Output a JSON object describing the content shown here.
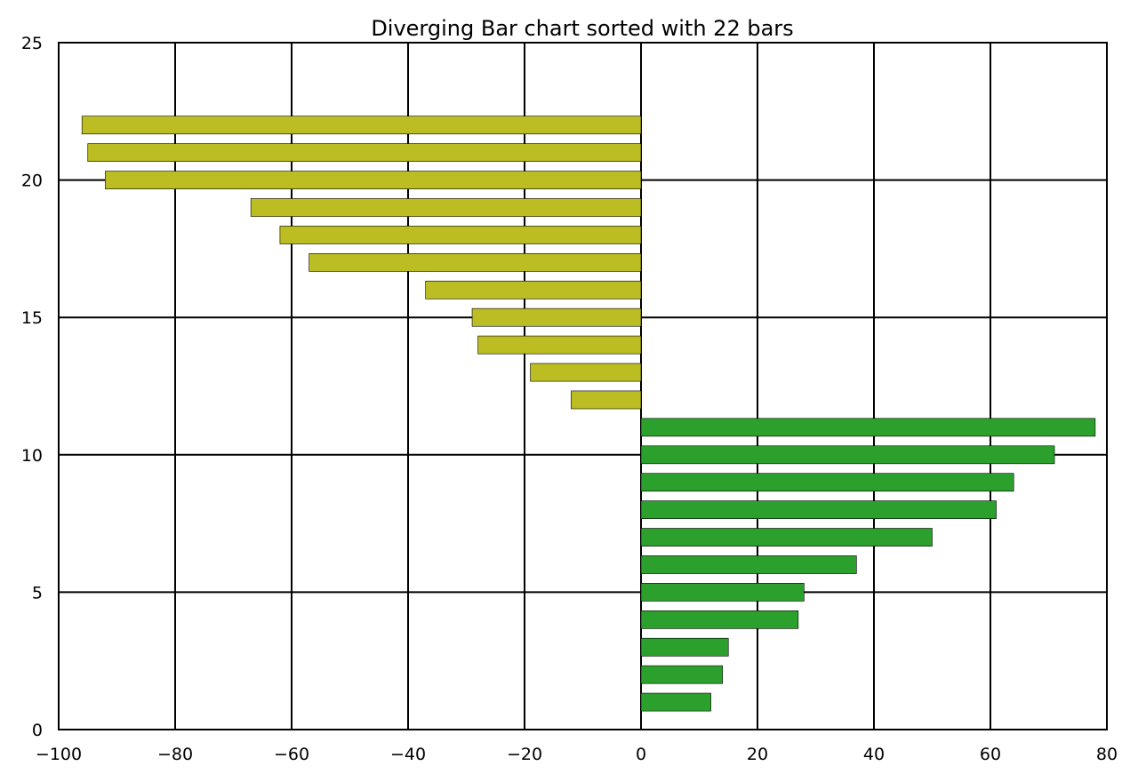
{
  "chart_data": {
    "type": "bar",
    "orientation": "horizontal",
    "title": "Diverging Bar chart sorted with 22 bars",
    "xlabel": "",
    "ylabel": "",
    "xlim": [
      -100,
      80
    ],
    "ylim": [
      0,
      25
    ],
    "xticks": [
      -100,
      -80,
      -60,
      -40,
      -20,
      0,
      20,
      40,
      60,
      80
    ],
    "yticks": [
      0,
      5,
      10,
      15,
      20,
      25
    ],
    "x_tick_labels": [
      "−100",
      "−80",
      "−60",
      "−40",
      "−20",
      "0",
      "20",
      "40",
      "60",
      "80"
    ],
    "y_tick_labels": [
      "0",
      "5",
      "10",
      "15",
      "20",
      "25"
    ],
    "grid": true,
    "bar_height": 0.65,
    "colors": {
      "positive": "#2ca02c",
      "negative": "#bcbd22",
      "edge": "#000000",
      "grid": "#000000"
    },
    "bars": [
      {
        "y": 1,
        "value": 12
      },
      {
        "y": 2,
        "value": 14
      },
      {
        "y": 3,
        "value": 15
      },
      {
        "y": 4,
        "value": 27
      },
      {
        "y": 5,
        "value": 28
      },
      {
        "y": 6,
        "value": 37
      },
      {
        "y": 7,
        "value": 50
      },
      {
        "y": 8,
        "value": 61
      },
      {
        "y": 9,
        "value": 64
      },
      {
        "y": 10,
        "value": 71
      },
      {
        "y": 11,
        "value": 78
      },
      {
        "y": 12,
        "value": -12
      },
      {
        "y": 13,
        "value": -19
      },
      {
        "y": 14,
        "value": -28
      },
      {
        "y": 15,
        "value": -29
      },
      {
        "y": 16,
        "value": -37
      },
      {
        "y": 17,
        "value": -57
      },
      {
        "y": 18,
        "value": -62
      },
      {
        "y": 19,
        "value": -67
      },
      {
        "y": 20,
        "value": -92
      },
      {
        "y": 21,
        "value": -95
      },
      {
        "y": 22,
        "value": -96
      }
    ]
  }
}
